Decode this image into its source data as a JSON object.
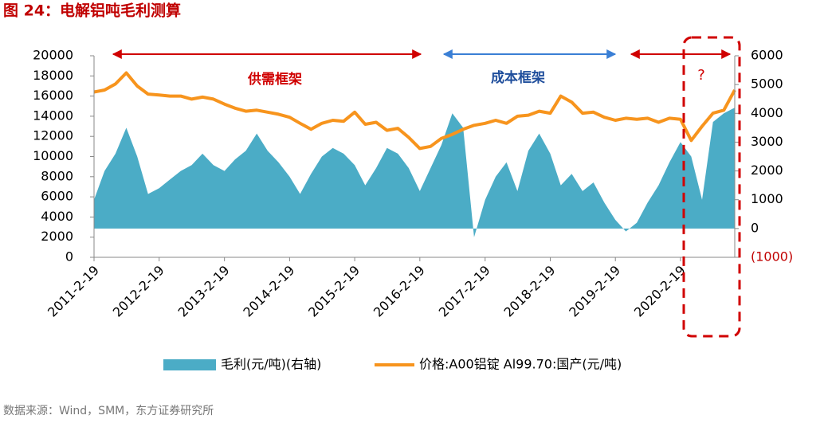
{
  "chart_data": {
    "type": "area-line",
    "title": "图 24：电解铝吨毛利测算",
    "source": "数据来源：Wind，SMM，东方证券研究所",
    "annotations": [
      "供需框架",
      "成本框架",
      "?"
    ],
    "x": [
      "2011-2-19",
      "2011-4-19",
      "2011-6-19",
      "2011-8-19",
      "2011-10-19",
      "2011-12-19",
      "2012-2-19",
      "2012-4-19",
      "2012-6-19",
      "2012-8-19",
      "2012-10-19",
      "2012-12-19",
      "2013-2-19",
      "2013-4-19",
      "2013-6-19",
      "2013-8-19",
      "2013-10-19",
      "2013-12-19",
      "2014-2-19",
      "2014-4-19",
      "2014-6-19",
      "2014-8-19",
      "2014-10-19",
      "2014-12-19",
      "2015-2-19",
      "2015-4-19",
      "2015-6-19",
      "2015-8-19",
      "2015-10-19",
      "2015-12-19",
      "2016-2-19",
      "2016-4-19",
      "2016-6-19",
      "2016-8-19",
      "2016-10-19",
      "2016-12-19",
      "2017-2-19",
      "2017-4-19",
      "2017-6-19",
      "2017-8-19",
      "2017-10-19",
      "2017-12-19",
      "2018-2-19",
      "2018-4-19",
      "2018-6-19",
      "2018-8-19",
      "2018-10-19",
      "2018-12-19",
      "2019-2-19",
      "2019-4-19",
      "2019-6-19",
      "2019-8-19",
      "2019-10-19",
      "2019-12-19",
      "2020-2-19",
      "2020-4-19",
      "2020-6-19",
      "2020-8-19",
      "2020-10-19",
      "2020-12-19"
    ],
    "series": [
      {
        "name": "毛利(元/吨)(右轴)",
        "color": "#4bacc6",
        "axis": "y2",
        "kind": "area",
        "values": [
          1000,
          2000,
          2600,
          3500,
          2500,
          1200,
          1400,
          1700,
          2000,
          2200,
          2600,
          2200,
          2000,
          2400,
          2700,
          3300,
          2700,
          2300,
          1800,
          1200,
          1900,
          2500,
          2800,
          2600,
          2200,
          1500,
          2100,
          2800,
          2600,
          2100,
          1300,
          2100,
          2900,
          4000,
          3500,
          -300,
          1000,
          1800,
          2300,
          1300,
          2700,
          3300,
          2600,
          1500,
          1900,
          1300,
          1600,
          900,
          300,
          -100,
          200,
          900,
          1500,
          2300,
          3000,
          2500,
          1000,
          3700,
          4000,
          4200
        ]
      },
      {
        "name": "价格:A00铝锭 Al99.70:国产(元/吨)",
        "color": "#f7941d",
        "kind": "line",
        "values": [
          16400,
          16600,
          17200,
          18300,
          17000,
          16200,
          16100,
          16000,
          16000,
          15700,
          15900,
          15700,
          15200,
          14800,
          14500,
          14600,
          14400,
          14200,
          13900,
          13300,
          12700,
          13300,
          13600,
          13500,
          14400,
          13200,
          13400,
          12600,
          12800,
          11900,
          10800,
          11000,
          11800,
          12200,
          12700,
          13100,
          13300,
          13600,
          13300,
          14000,
          14100,
          14500,
          14300,
          16000,
          15400,
          14300,
          14400,
          13900,
          13600,
          13800,
          13700,
          13800,
          13400,
          13800,
          13700,
          11600,
          13000,
          14300,
          14600,
          16600
        ]
      }
    ],
    "xlim": [
      "2011-2-19",
      "2020-12-19"
    ],
    "xticks": [
      "2011-2-19",
      "2012-2-19",
      "2013-2-19",
      "2014-2-19",
      "2015-2-19",
      "2016-2-19",
      "2017-2-19",
      "2018-2-19",
      "2019-2-19",
      "2020-2-19"
    ],
    "ylim": [
      0,
      20000
    ],
    "yticks": [
      0,
      2000,
      4000,
      6000,
      8000,
      10000,
      12000,
      14000,
      16000,
      18000,
      20000
    ],
    "y2lim": [
      -1000,
      6000
    ],
    "y2ticks": [
      {
        "value": -1000,
        "label": "(1000)"
      },
      0,
      1000,
      2000,
      3000,
      4000,
      5000,
      6000
    ],
    "legend": "bottom"
  }
}
